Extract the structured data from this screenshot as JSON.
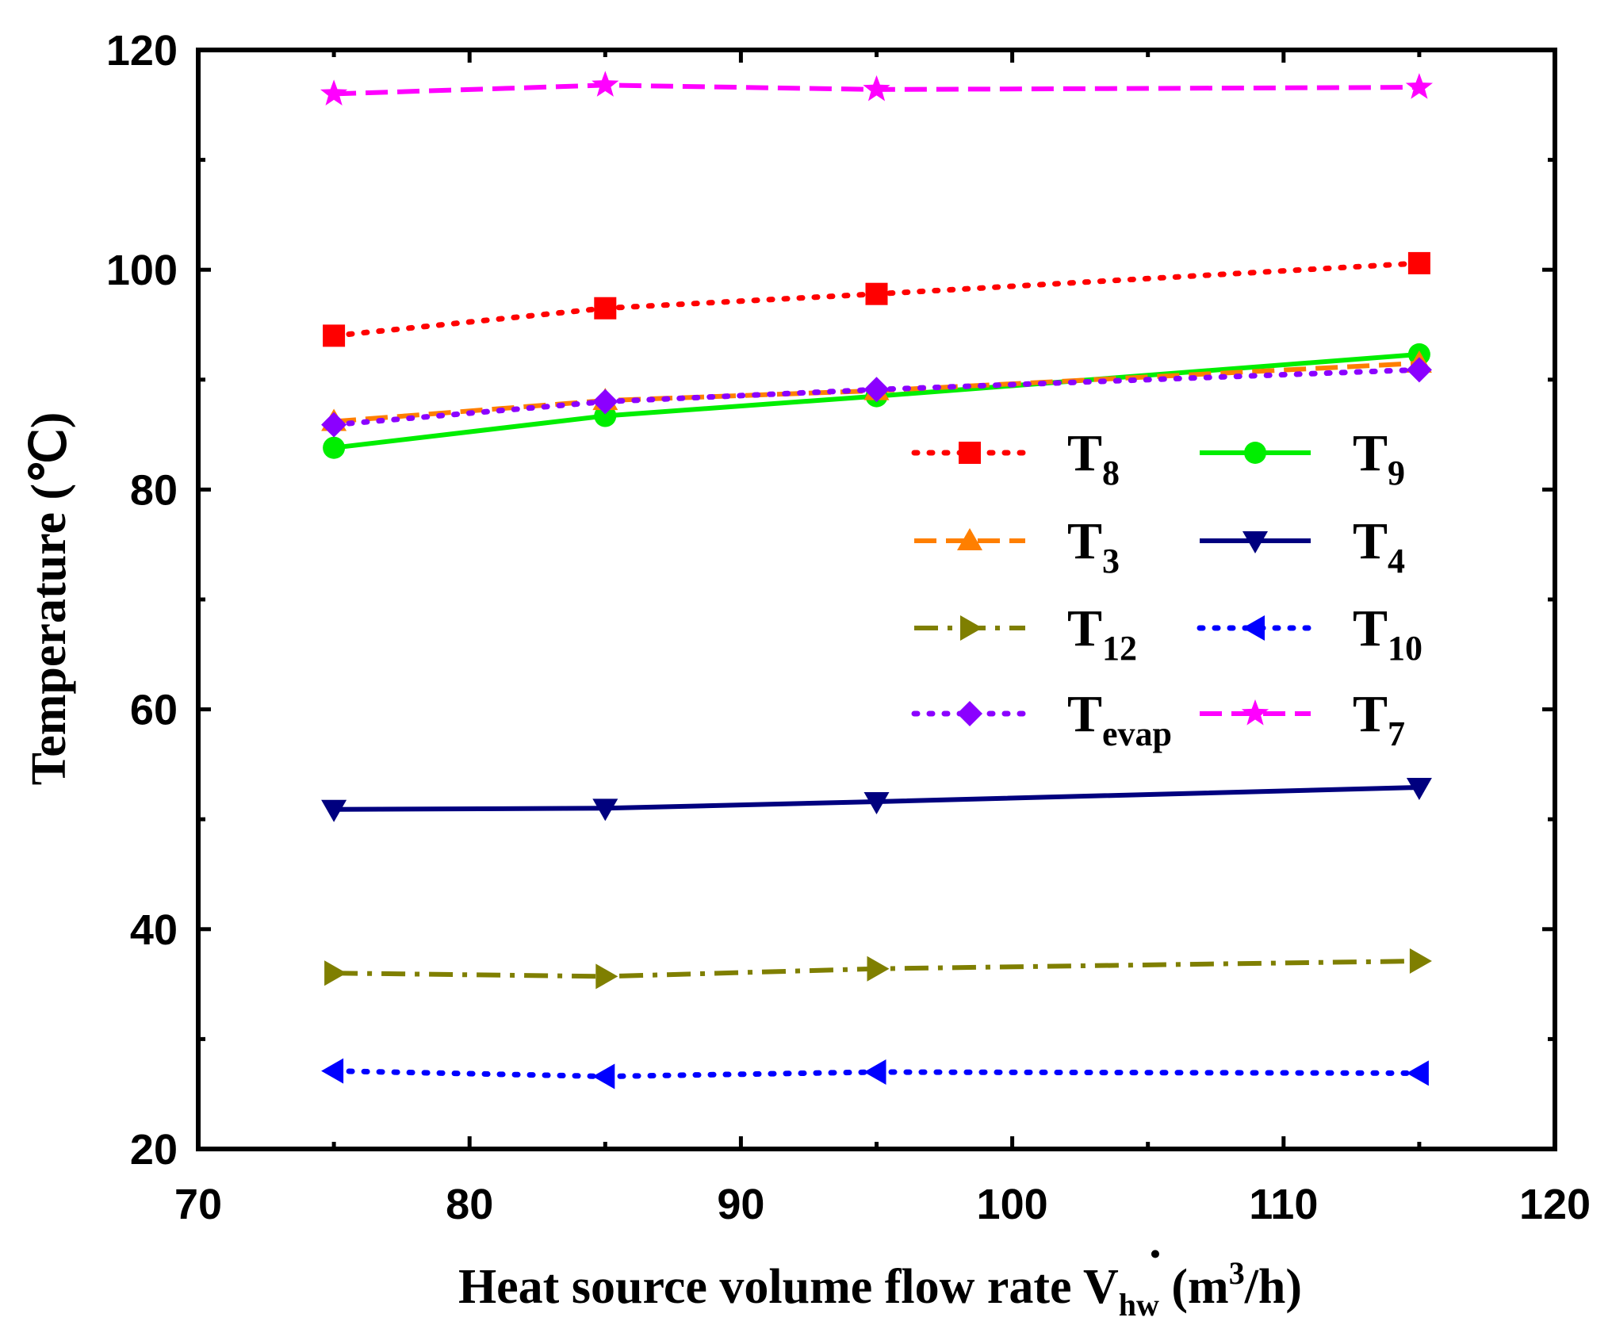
{
  "chart_data": {
    "type": "line",
    "title": "",
    "xlabel": {
      "main": "Heat source volume flow rate ",
      "symbol": "V",
      "symbol_dot": "·",
      "symbol_sub": "hw",
      "unit_open": " (m",
      "unit_sup": "3",
      "unit_close": "/h)"
    },
    "ylabel": "Temperature (℃)",
    "xlim": [
      70,
      120
    ],
    "ylim": [
      20,
      120
    ],
    "xticks": [
      "70",
      "80",
      "90",
      "100",
      "110",
      "120"
    ],
    "yticks": [
      "20",
      "40",
      "60",
      "80",
      "100",
      "120"
    ],
    "x": [
      75,
      85,
      95,
      115
    ],
    "series": [
      {
        "id": "T8",
        "base": "T",
        "sub": "8",
        "color": "#ff0000",
        "dash": "dotted",
        "marker": "square",
        "values": [
          94.0,
          96.5,
          97.8,
          100.6
        ]
      },
      {
        "id": "T9",
        "base": "T",
        "sub": "9",
        "color": "#00ee00",
        "dash": "solid",
        "marker": "circle",
        "values": [
          83.8,
          86.7,
          88.5,
          92.3
        ]
      },
      {
        "id": "T3",
        "base": "T",
        "sub": "3",
        "color": "#ff7f00",
        "dash": "dashed",
        "marker": "triangle-up",
        "values": [
          86.2,
          88.1,
          89.0,
          91.5
        ]
      },
      {
        "id": "T4",
        "base": "T",
        "sub": "4",
        "color": "#00007f",
        "dash": "solid",
        "marker": "triangle-down",
        "values": [
          50.9,
          51.0,
          51.6,
          52.9
        ]
      },
      {
        "id": "T12",
        "base": "T",
        "sub": "12",
        "color": "#7f7f00",
        "dash": "dashdot",
        "marker": "triangle-right",
        "values": [
          36.0,
          35.7,
          36.4,
          37.1
        ]
      },
      {
        "id": "T10",
        "base": "T",
        "sub": "10",
        "color": "#0000ff",
        "dash": "dotted",
        "marker": "triangle-left",
        "values": [
          27.1,
          26.6,
          27.0,
          26.9
        ]
      },
      {
        "id": "Tevap",
        "base": "T",
        "sub": "evap",
        "color": "#8b00ff",
        "dash": "dotted",
        "marker": "diamond",
        "values": [
          85.9,
          88.0,
          89.1,
          90.9
        ]
      },
      {
        "id": "T7",
        "base": "T",
        "sub": "7",
        "color": "#ff00ff",
        "dash": "dashed",
        "marker": "star",
        "values": [
          116.0,
          116.8,
          116.4,
          116.6
        ]
      }
    ],
    "legend": {
      "position": "center-right",
      "columns": 2,
      "order": [
        "T8",
        "T9",
        "T3",
        "T4",
        "T12",
        "T10",
        "Tevap",
        "T7"
      ]
    },
    "grid": false
  }
}
